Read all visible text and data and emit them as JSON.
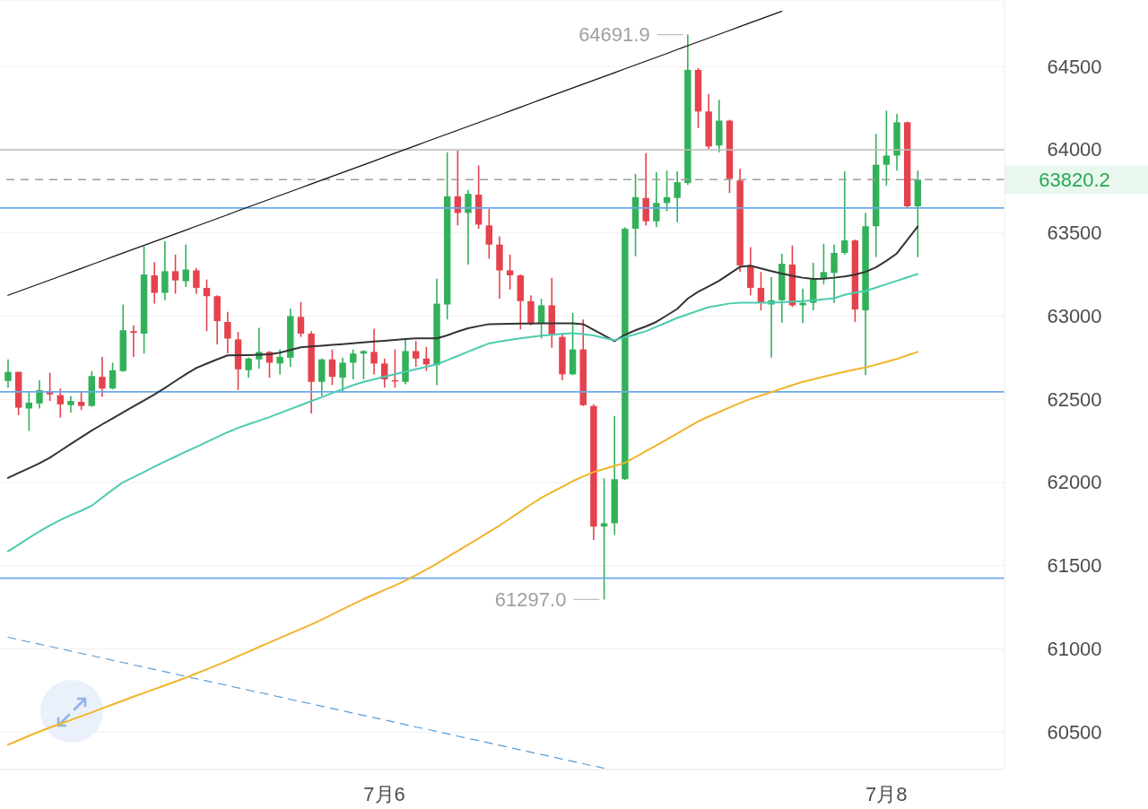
{
  "chart_data": {
    "type": "candlestick",
    "categories": [
      null,
      null,
      null,
      null,
      null,
      null,
      null,
      null,
      null,
      null,
      null,
      null,
      null,
      null,
      null,
      null,
      null,
      null,
      null,
      null,
      null,
      null,
      null,
      null,
      null,
      null,
      null,
      null,
      null,
      null,
      null,
      null,
      null,
      null,
      null,
      null,
      "7月6",
      null,
      null,
      null,
      null,
      null,
      null,
      null,
      null,
      null,
      null,
      null,
      null,
      null,
      null,
      null,
      null,
      null,
      null,
      null,
      null,
      null,
      null,
      null,
      null,
      null,
      null,
      null,
      null,
      null,
      null,
      null,
      null,
      null,
      null,
      null,
      null,
      null,
      null,
      null,
      null,
      null,
      null,
      null,
      null,
      null,
      null,
      null,
      "7月8",
      null,
      null,
      null
    ],
    "ohlc": [
      [
        62610,
        62740,
        62570,
        62665
      ],
      [
        62665,
        62665,
        62405,
        62450
      ],
      [
        62445,
        62540,
        62310,
        62480
      ],
      [
        62475,
        62615,
        62445,
        62555
      ],
      [
        62550,
        62660,
        62490,
        62530
      ],
      [
        62525,
        62565,
        62390,
        62470
      ],
      [
        62465,
        62520,
        62420,
        62490
      ],
      [
        62485,
        62545,
        62435,
        62460
      ],
      [
        62460,
        62670,
        62455,
        62640
      ],
      [
        62635,
        62755,
        62515,
        62565
      ],
      [
        62565,
        62720,
        62560,
        62675
      ],
      [
        62670,
        63070,
        62665,
        62915
      ],
      [
        62910,
        62945,
        62755,
        62900
      ],
      [
        62895,
        63420,
        62775,
        63250
      ],
      [
        63245,
        63325,
        63075,
        63140
      ],
      [
        63140,
        63450,
        63095,
        63270
      ],
      [
        63270,
        63370,
        63135,
        63215
      ],
      [
        63210,
        63430,
        63175,
        63280
      ],
      [
        63275,
        63290,
        63135,
        63170
      ],
      [
        63170,
        63220,
        62910,
        63120
      ],
      [
        63120,
        63125,
        62830,
        62970
      ],
      [
        62965,
        63025,
        62775,
        62865
      ],
      [
        62860,
        62905,
        62555,
        62680
      ],
      [
        62675,
        62750,
        62630,
        62745
      ],
      [
        62740,
        62930,
        62685,
        62785
      ],
      [
        62785,
        62790,
        62630,
        62720
      ],
      [
        62715,
        62800,
        62650,
        62755
      ],
      [
        62750,
        63045,
        62695,
        63000
      ],
      [
        62995,
        63085,
        62875,
        62895
      ],
      [
        62895,
        62910,
        62415,
        62605
      ],
      [
        62605,
        62745,
        62520,
        62740
      ],
      [
        62740,
        62800,
        62585,
        62635
      ],
      [
        62630,
        62750,
        62540,
        62720
      ],
      [
        62720,
        62800,
        62620,
        62775
      ],
      [
        62775,
        62795,
        62620,
        62790
      ],
      [
        62785,
        62925,
        62650,
        62715
      ],
      [
        62715,
        62745,
        62570,
        62620
      ],
      [
        62615,
        62800,
        62570,
        62610
      ],
      [
        62605,
        62860,
        62590,
        62790
      ],
      [
        62790,
        62850,
        62695,
        62745
      ],
      [
        62745,
        62815,
        62670,
        62710
      ],
      [
        62705,
        63225,
        62585,
        63075
      ],
      [
        63070,
        63985,
        62980,
        63720
      ],
      [
        63720,
        63995,
        63545,
        63620
      ],
      [
        63620,
        63760,
        63310,
        63735
      ],
      [
        63730,
        63905,
        63525,
        63550
      ],
      [
        63545,
        63645,
        63345,
        63430
      ],
      [
        63430,
        63480,
        63105,
        63275
      ],
      [
        63275,
        63370,
        63160,
        63245
      ],
      [
        63245,
        63250,
        62920,
        63090
      ],
      [
        63090,
        63125,
        62945,
        62960
      ],
      [
        62960,
        63105,
        62865,
        63065
      ],
      [
        63065,
        63230,
        62810,
        62890
      ],
      [
        62875,
        62890,
        62615,
        62650
      ],
      [
        62650,
        63020,
        62645,
        62800
      ],
      [
        62800,
        62980,
        62460,
        62465
      ],
      [
        62460,
        62470,
        61655,
        61735
      ],
      [
        61735,
        62025,
        61297.0,
        61755
      ],
      [
        61755,
        62400,
        61685,
        62020
      ],
      [
        62020,
        63535,
        62015,
        63525
      ],
      [
        63525,
        63855,
        63360,
        63715
      ],
      [
        63710,
        63980,
        63545,
        63570
      ],
      [
        63570,
        63865,
        63535,
        63680
      ],
      [
        63680,
        63875,
        63630,
        63715
      ],
      [
        63710,
        63870,
        63565,
        63805
      ],
      [
        63800,
        64691.9,
        63790,
        64480
      ],
      [
        64480,
        64490,
        64130,
        64230
      ],
      [
        64230,
        64335,
        64005,
        64020
      ],
      [
        64025,
        64300,
        63985,
        64175
      ],
      [
        64175,
        64180,
        63740,
        63825
      ],
      [
        63815,
        63885,
        63265,
        63305
      ],
      [
        63305,
        63415,
        63125,
        63170
      ],
      [
        63170,
        63265,
        63035,
        63080
      ],
      [
        63070,
        63235,
        62750,
        63095
      ],
      [
        63095,
        63375,
        62960,
        63315
      ],
      [
        63310,
        63425,
        63055,
        63065
      ],
      [
        63065,
        63165,
        62960,
        63080
      ],
      [
        63080,
        63320,
        63035,
        63220
      ],
      [
        63225,
        63435,
        63190,
        63265
      ],
      [
        63260,
        63430,
        63080,
        63380
      ],
      [
        63380,
        63870,
        63370,
        63455
      ],
      [
        63455,
        63460,
        62965,
        63040
      ],
      [
        63035,
        63620,
        62645,
        63540
      ],
      [
        63540,
        64095,
        63355,
        63910
      ],
      [
        63910,
        64235,
        63785,
        63965
      ],
      [
        63965,
        64215,
        63875,
        64165
      ],
      [
        64165,
        64170,
        63650,
        63660
      ],
      [
        63660,
        63875,
        63355,
        63820.2
      ]
    ],
    "colors": [
      "#33b15a",
      "#e5424d",
      "#33b15a",
      "#33b15a",
      "#e5424d",
      "#e5424d",
      "#33b15a",
      "#e5424d",
      "#33b15a",
      "#e5424d",
      "#33b15a",
      "#33b15a",
      "#e5424d",
      "#33b15a",
      "#e5424d",
      "#33b15a",
      "#e5424d",
      "#33b15a",
      "#e5424d",
      "#e5424d",
      "#e5424d",
      "#e5424d",
      "#e5424d",
      "#33b15a",
      "#33b15a",
      "#e5424d",
      "#33b15a",
      "#33b15a",
      "#e5424d",
      "#e5424d",
      "#33b15a",
      "#e5424d",
      "#33b15a",
      "#33b15a",
      "#33b15a",
      "#e5424d",
      "#e5424d",
      "#e5424d",
      "#33b15a",
      "#e5424d",
      "#e5424d",
      "#33b15a",
      "#33b15a",
      "#e5424d",
      "#33b15a",
      "#e5424d",
      "#e5424d",
      "#e5424d",
      "#e5424d",
      "#e5424d",
      "#e5424d",
      "#33b15a",
      "#e5424d",
      "#e5424d",
      "#33b15a",
      "#e5424d",
      "#e5424d",
      "#33b15a",
      "#33b15a",
      "#33b15a",
      "#33b15a",
      "#e5424d",
      "#33b15a",
      "#33b15a",
      "#33b15a",
      "#33b15a",
      "#e5424d",
      "#e5424d",
      "#33b15a",
      "#e5424d",
      "#e5424d",
      "#e5424d",
      "#e5424d",
      "#33b15a",
      "#33b15a",
      "#e5424d",
      "#33b15a",
      "#33b15a",
      "#33b15a",
      "#33b15a",
      "#33b15a",
      "#e5424d",
      "#33b15a",
      "#33b15a",
      "#33b15a",
      "#33b15a",
      "#e5424d",
      "#33b15a"
    ],
    "series": [
      {
        "type": "line",
        "color": "#333333",
        "values": [
          62028,
          62057,
          62086,
          62115,
          62149,
          62190,
          62231,
          62271,
          62312,
          62349,
          62385,
          62421,
          62457,
          62493,
          62529,
          62568,
          62609,
          62650,
          62688,
          62714,
          62740,
          62764,
          62765,
          62766,
          62768,
          62771,
          62780,
          62796,
          62813,
          62818,
          62822,
          62827,
          62832,
          62837,
          62842,
          62847,
          62852,
          62857,
          62862,
          62866,
          62866,
          62866,
          62884,
          62907,
          62927,
          62940,
          62952,
          62953,
          62954,
          62955,
          62956,
          62957,
          62957,
          62957,
          62957,
          62952,
          62918,
          62884,
          62850,
          62887,
          62915,
          62938,
          62965,
          63004,
          63043,
          63105,
          63146,
          63178,
          63212,
          63254,
          63296,
          63303,
          63287,
          63271,
          63256,
          63243,
          63231,
          63223,
          63225,
          63231,
          63239,
          63249,
          63266,
          63293,
          63332,
          63376,
          63457,
          63538
        ]
      },
      {
        "type": "line",
        "color": "#4ccbb0",
        "values": [
          61586,
          61626,
          61666,
          61706,
          61742,
          61774,
          61804,
          61830,
          61860,
          61908,
          61956,
          62001,
          62032,
          62063,
          62095,
          62126,
          62155,
          62185,
          62214,
          62243,
          62273,
          62302,
          62328,
          62350,
          62371,
          62393,
          62417,
          62441,
          62465,
          62489,
          62513,
          62537,
          62561,
          62585,
          62605,
          62620,
          62636,
          62651,
          62666,
          62680,
          62695,
          62710,
          62735,
          62760,
          62786,
          62811,
          62836,
          62847,
          62857,
          62866,
          62875,
          62883,
          62888,
          62893,
          62898,
          62892,
          62884,
          62869,
          62855,
          62873,
          62891,
          62909,
          62936,
          62962,
          62989,
          63011,
          63032,
          63054,
          63065,
          63076,
          63081,
          63081,
          63081,
          63081,
          63084,
          63087,
          63090,
          63095,
          63101,
          63108,
          63128,
          63141,
          63151,
          63171,
          63192,
          63212,
          63233,
          63253
        ]
      },
      {
        "type": "line",
        "color": "#f0b429",
        "values": [
          60424,
          60450,
          60477,
          60503,
          60527,
          60550,
          60572,
          60595,
          60618,
          60642,
          60666,
          60689,
          60713,
          60735,
          60758,
          60780,
          60803,
          60827,
          60852,
          60877,
          60902,
          60928,
          60956,
          60983,
          61011,
          61038,
          61065,
          61092,
          61119,
          61146,
          61176,
          61207,
          61238,
          61269,
          61299,
          61326,
          61354,
          61381,
          61410,
          61443,
          61476,
          61512,
          61550,
          61588,
          61626,
          61664,
          61703,
          61741,
          61783,
          61825,
          61868,
          61908,
          61941,
          61974,
          62008,
          62036,
          62063,
          62081,
          62100,
          62118,
          62153,
          62188,
          62223,
          62258,
          62294,
          62331,
          62367,
          62396,
          62423,
          62451,
          62478,
          62502,
          62523,
          62543,
          62564,
          62585,
          62605,
          62620,
          62636,
          62651,
          62666,
          62679,
          62691,
          62708,
          62725,
          62742,
          62764,
          62785
        ]
      },
      {
        "type": "line",
        "color": "#111111",
        "values": [
          63125,
          63148,
          63171,
          63194,
          63217,
          63240,
          63263,
          63286,
          63310,
          63333,
          63356,
          63379,
          63402,
          63425,
          63448,
          63471,
          63494,
          63517,
          63540,
          63563,
          63586,
          63609,
          63633,
          63656,
          63679,
          63702,
          63725,
          63748,
          63771,
          63794,
          63817,
          63840,
          63863,
          63886,
          63909,
          63932,
          63956,
          63979,
          64002,
          64025,
          64048,
          64071,
          64094,
          64117,
          64140,
          64163,
          64186,
          64209,
          64232,
          64255,
          64279,
          64302,
          64325,
          64348,
          64371,
          64394,
          64417,
          64440,
          64463,
          64486,
          64509,
          64532,
          64555,
          64578,
          64602,
          64625,
          64648,
          64671,
          64694,
          64717,
          64740,
          64763,
          64786,
          64809,
          64832,
          null,
          null,
          null,
          null,
          null,
          null,
          null,
          null,
          null,
          null,
          null,
          null,
          null
        ]
      },
      {
        "type": "line",
        "color": "#5b9bd5",
        "line_style": "dashed",
        "values": [
          61070,
          61056,
          61042,
          61029,
          61015,
          61001,
          60987,
          60973,
          60960,
          60946,
          60932,
          60918,
          60904,
          60890,
          60877,
          60863,
          60849,
          60835,
          60821,
          60808,
          60794,
          60780,
          60766,
          60752,
          60739,
          60725,
          60711,
          60697,
          60683,
          60670,
          60656,
          60642,
          60628,
          60614,
          60600,
          60587,
          60573,
          60559,
          60545,
          60531,
          60518,
          60504,
          60490,
          60476,
          60462,
          60449,
          60435,
          60421,
          60407,
          60393,
          60379,
          60366,
          60352,
          60338,
          60324,
          60310,
          60297,
          60283,
          null,
          null,
          null,
          null,
          null,
          null,
          null,
          null,
          null,
          null,
          null,
          null,
          null,
          null,
          null,
          null,
          null,
          null,
          null,
          null,
          null,
          null,
          null,
          null,
          null,
          null,
          null,
          null,
          null,
          null
        ]
      }
    ],
    "ylim": [
      60275,
      64900
    ],
    "yticks": [
      60500,
      61000,
      61500,
      62000,
      62500,
      63000,
      63500,
      64000,
      64500
    ],
    "grid": "y",
    "ref_lines": [
      {
        "axis": "y",
        "value": 64000,
        "color": "#bdbdbd",
        "line_style": "solid"
      },
      {
        "axis": "y",
        "value": 63820.2,
        "label": "63820.2",
        "color": "#9e9e9e",
        "line_style": "dashed"
      },
      {
        "axis": "y",
        "value": 63650,
        "color": "#6aaae8",
        "line_style": "solid"
      },
      {
        "axis": "y",
        "value": 62545,
        "color": "#6aaae8",
        "line_style": "solid"
      },
      {
        "axis": "y",
        "value": 61425,
        "color": "#6aaae8",
        "line_style": "solid"
      }
    ],
    "annotations": [
      "64691.9",
      "61297.0"
    ]
  }
}
